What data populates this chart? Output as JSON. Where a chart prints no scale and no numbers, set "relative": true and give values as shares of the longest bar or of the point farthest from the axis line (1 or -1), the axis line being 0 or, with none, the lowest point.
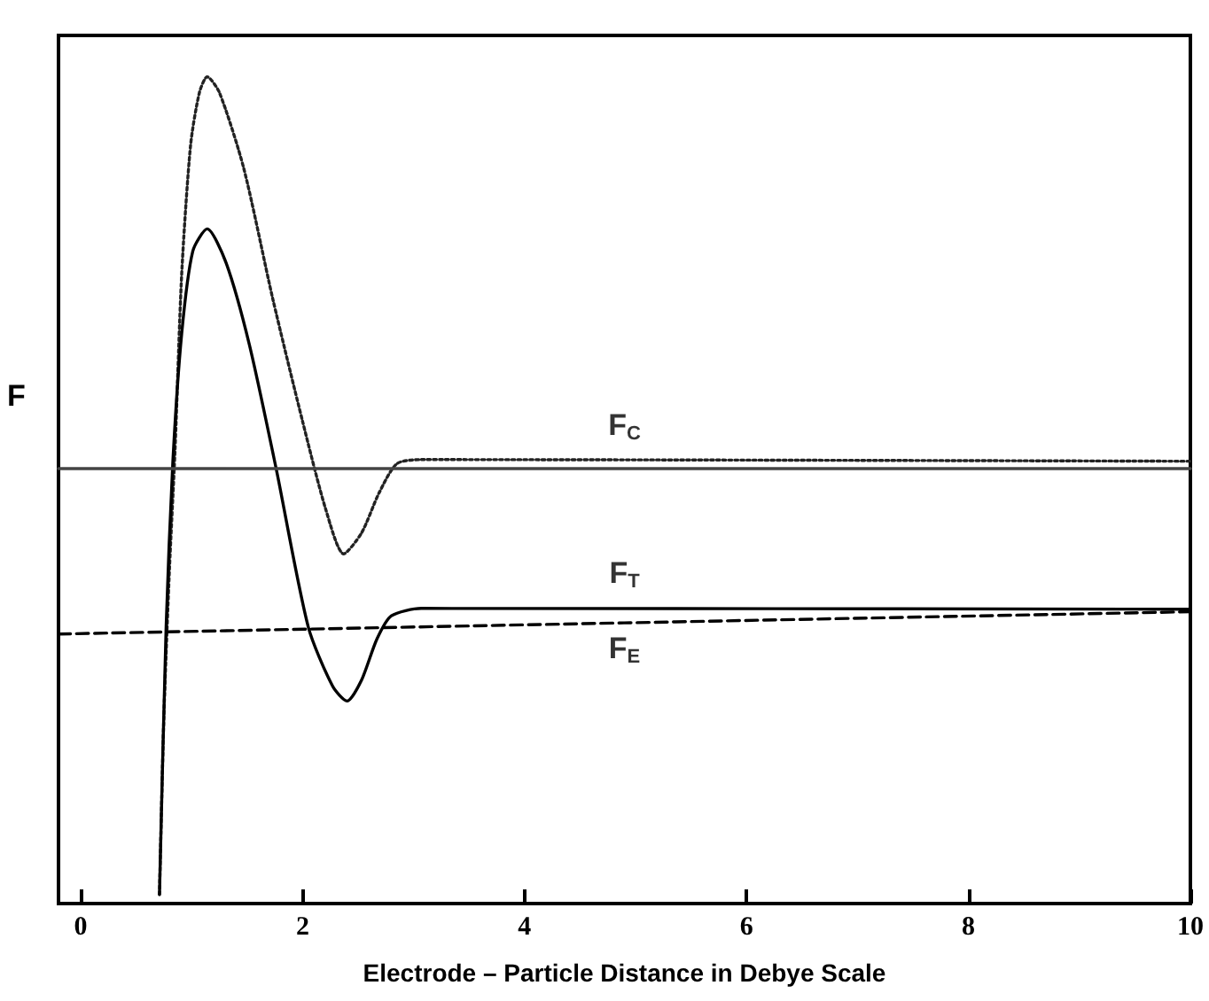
{
  "chart_data": {
    "type": "line",
    "relative": true,
    "xlabel": "Electrode – Particle Distance in Debye Scale",
    "ylabel": "F",
    "xlim": [
      -0.2,
      10
    ],
    "xticks": [
      0,
      2,
      4,
      6,
      8,
      10
    ],
    "grid": false,
    "marker": "none",
    "series": [
      {
        "name": "F$_{C}$",
        "color": "#222222",
        "line_style": "dotted",
        "x": [
          0.71,
          0.75,
          0.8,
          0.85,
          0.91,
          0.99,
          1.07,
          1.14,
          1.25,
          1.47,
          1.73,
          2.0,
          2.21,
          2.37,
          2.53,
          2.69,
          2.85,
          3.07,
          10
        ],
        "values": [
          0.011,
          0.228,
          0.405,
          0.548,
          0.761,
          0.917,
          0.981,
          1.0,
          0.981,
          0.889,
          0.732,
          0.583,
          0.476,
          0.423,
          0.448,
          0.497,
          0.532,
          0.537,
          0.535
        ]
      },
      {
        "name": "F$_{T}$",
        "color": "#000000",
        "line_style": "solid",
        "x": [
          0.71,
          0.77,
          0.83,
          0.91,
          1.01,
          1.14,
          1.31,
          1.52,
          1.76,
          2.05,
          2.27,
          2.4,
          2.53,
          2.67,
          2.8,
          3.07,
          10
        ],
        "values": [
          0.011,
          0.335,
          0.533,
          0.689,
          0.789,
          0.816,
          0.775,
          0.676,
          0.527,
          0.335,
          0.263,
          0.245,
          0.27,
          0.32,
          0.348,
          0.357,
          0.356
        ]
      },
      {
        "name": "F$_{E}$",
        "color": "#000000",
        "line_style": "dashed",
        "x": [
          -0.2,
          10
        ],
        "values": [
          0.326,
          0.353
        ]
      },
      {
        "color": "#444444",
        "line_style": "solid",
        "x": [
          -0.2,
          10
        ],
        "values": [
          0.526,
          0.526
        ]
      }
    ]
  }
}
